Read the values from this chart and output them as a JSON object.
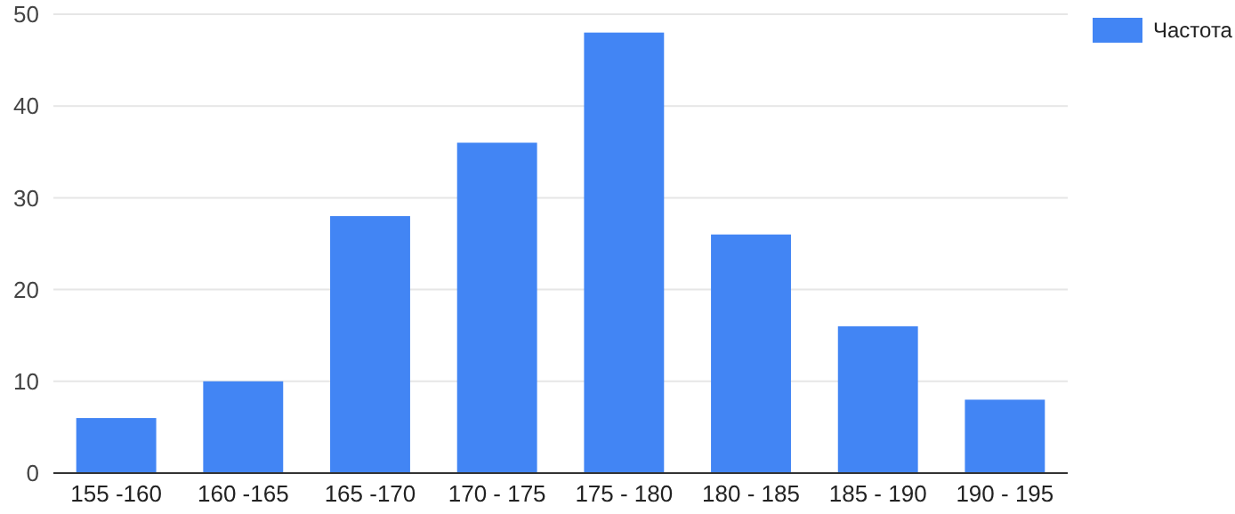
{
  "chart_data": {
    "type": "bar",
    "categories": [
      "155 -160",
      "160 -165",
      "165 -170",
      "170 - 175",
      "175 - 180",
      "180 - 185",
      "185 - 190",
      "190 - 195"
    ],
    "series": [
      {
        "name": "Частота",
        "color": "#4285f4",
        "values": [
          6,
          10,
          28,
          36,
          48,
          26,
          16,
          8
        ]
      }
    ],
    "ylim": [
      0,
      50
    ],
    "yticks": [
      0,
      10,
      20,
      30,
      40,
      50
    ],
    "grid": "y",
    "legend": "top right"
  }
}
